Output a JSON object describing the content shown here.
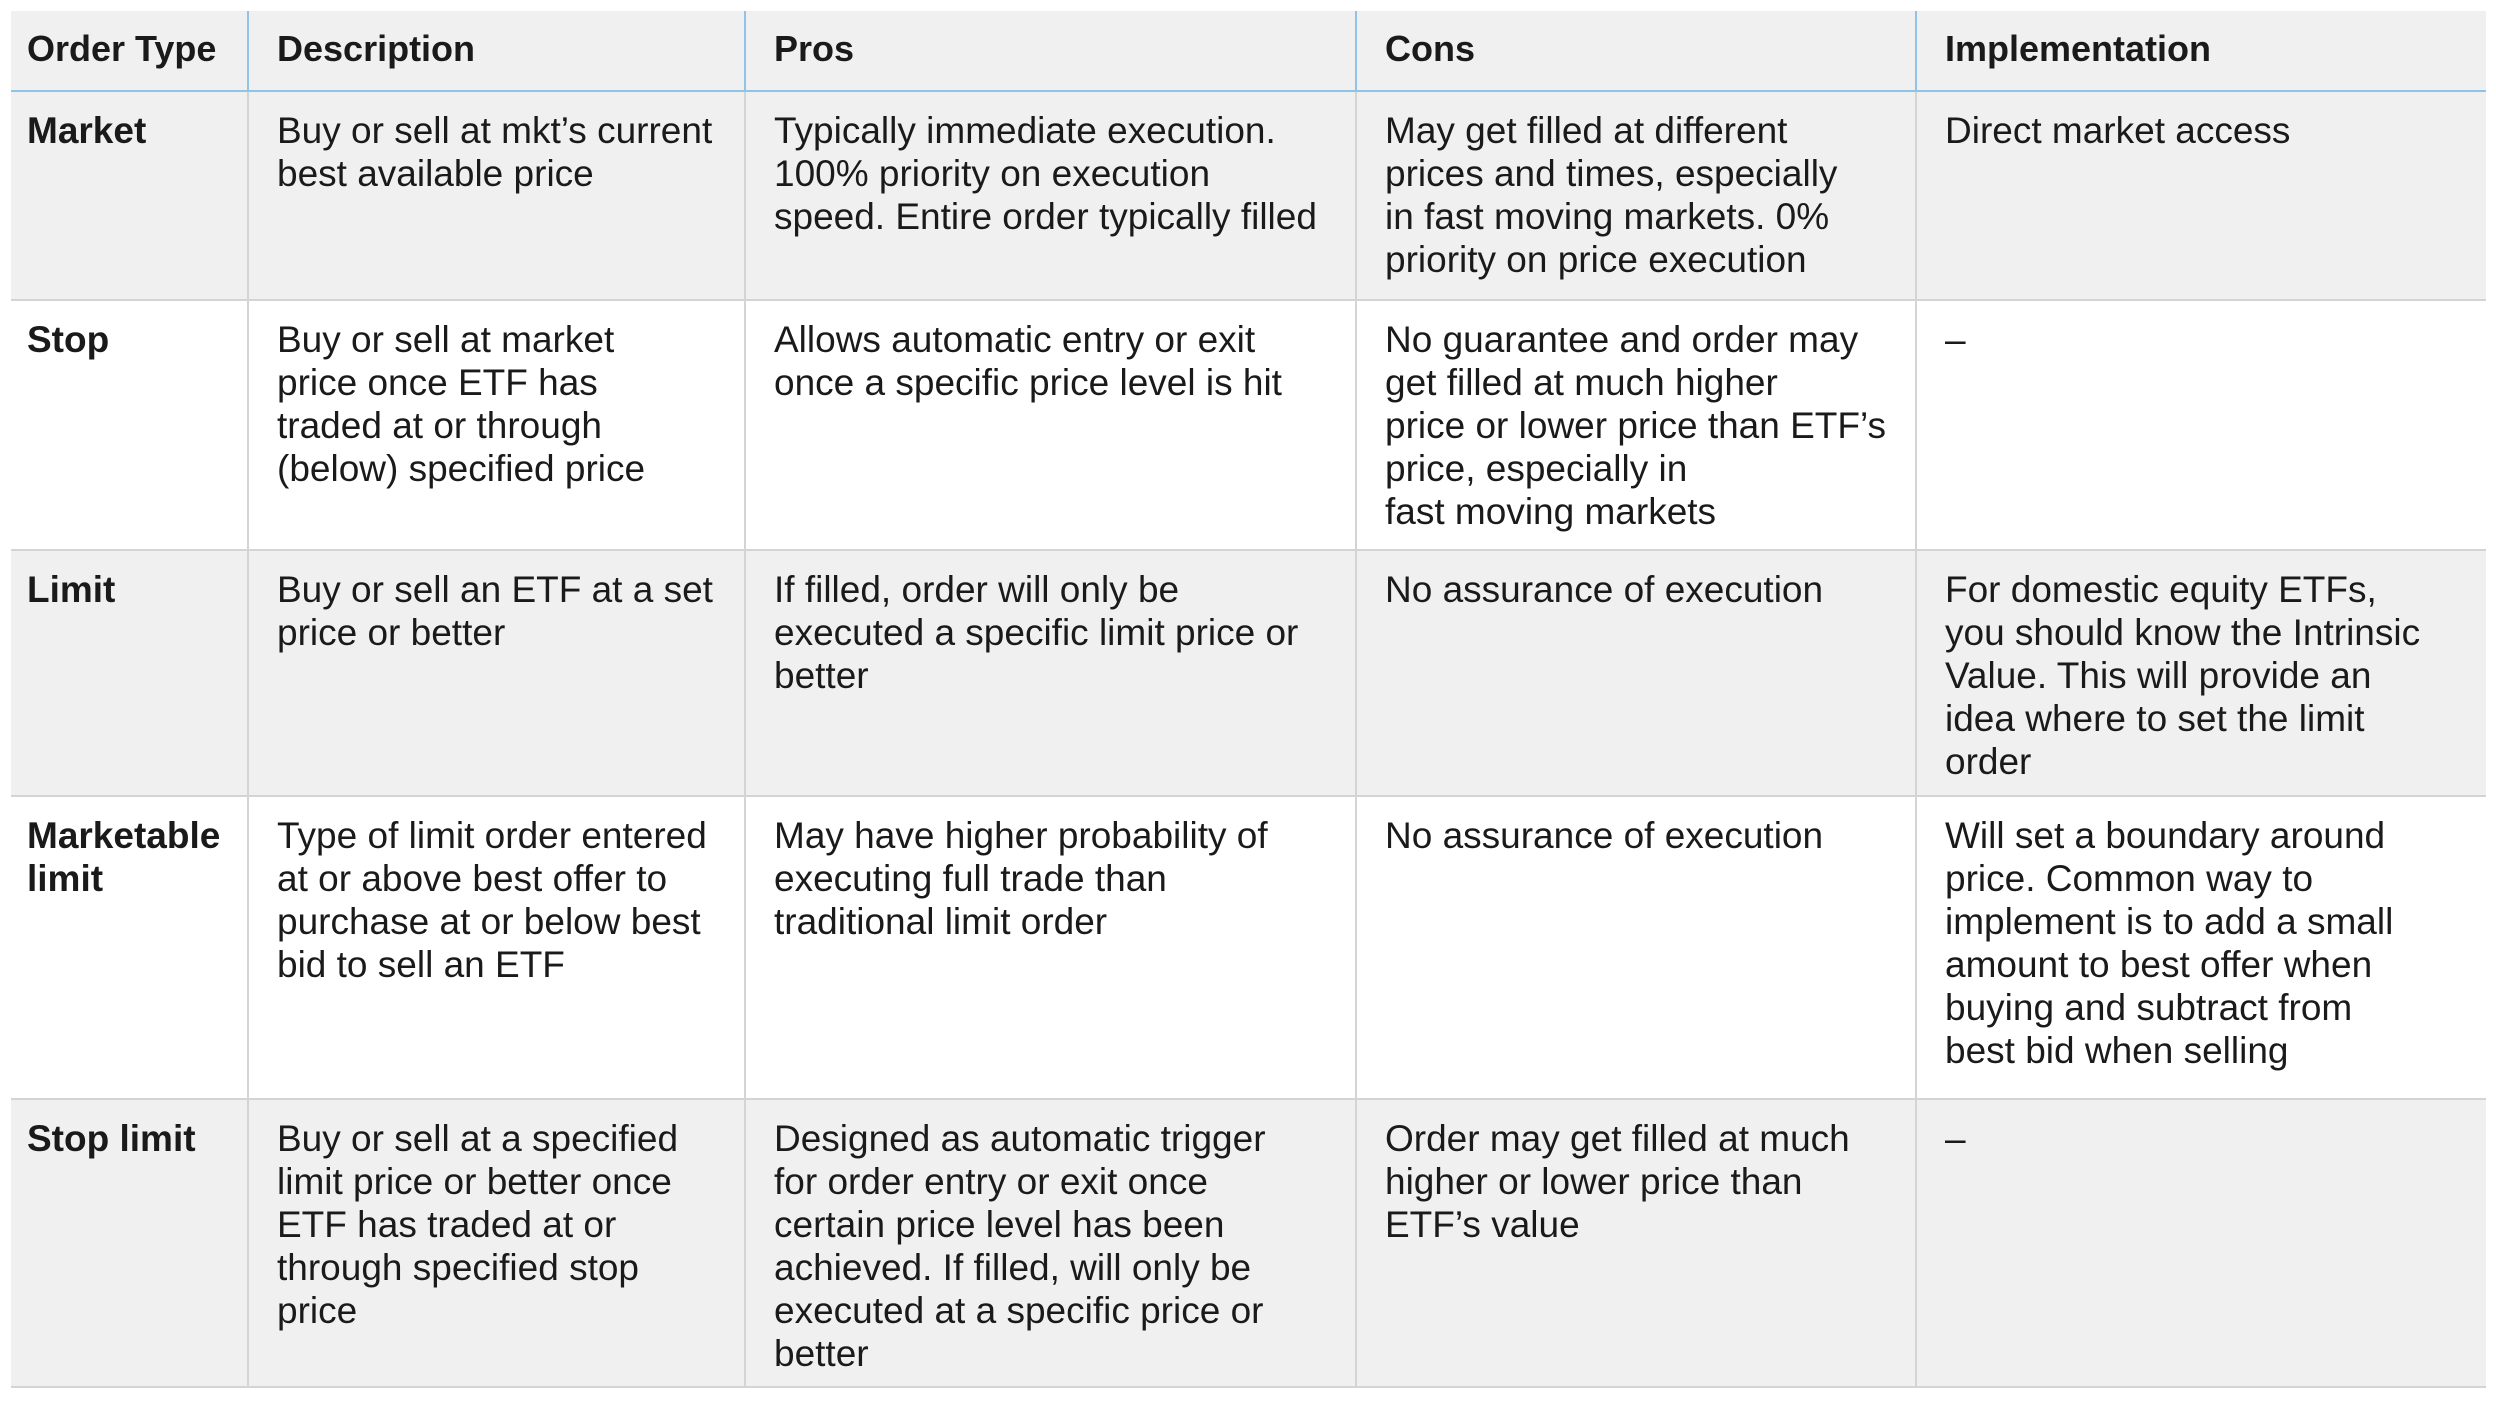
{
  "headers": [
    "Order Type",
    "Description",
    "Pros",
    "Cons",
    "Implementation"
  ],
  "rows": [
    {
      "type": "Market",
      "description": "Buy or sell at mkt’s current\nbest available price",
      "pros": "Typically immediate execution.\n100% priority on execution\nspeed. Entire order typically filled",
      "cons": "May get filled at different\nprices and times, especially\nin fast moving markets. 0%\npriority on price execution",
      "implementation": "Direct market access"
    },
    {
      "type": "Stop",
      "description": "Buy or sell at market\nprice once ETF has\ntraded at or through\n(below) specified price",
      "pros": "Allows automatic entry or exit\nonce a specific price level is hit",
      "cons": "No guarantee and order may\nget filled at much higher\nprice or lower price than ETF’s\nprice, especially in\nfast moving markets",
      "implementation": " –"
    },
    {
      "type": "Limit",
      "description": "Buy or sell an ETF at a set\nprice or better",
      "pros": "If filled, order will only be\nexecuted a specific limit price or\nbetter",
      "cons": "No assurance of execution",
      "implementation": "For domestic equity ETFs,\nyou should know the Intrinsic\nValue. This will provide an\nidea where to set the limit\norder"
    },
    {
      "type": "Marketable\nlimit",
      "description": "Type of limit order entered\nat or above best offer to\npurchase at or below best\nbid to sell an ETF",
      "pros": "May have higher probability of\nexecuting full trade than\ntraditional limit order",
      "cons": "No assurance of execution",
      "implementation": "Will set a boundary around\nprice. Common way to\nimplement is to add a small\namount to best offer when\nbuying and subtract from\nbest bid when selling"
    },
    {
      "type": "Stop limit",
      "description": "Buy or sell at a specified\nlimit price or better once\nETF has traded at or\nthrough specified stop\nprice",
      "pros": "Designed as automatic trigger\nfor order entry or exit once\ncertain price level has been\nachieved. If filled, will only be\nexecuted at a specific price or\nbetter",
      "cons": "Order may get filled at much\nhigher or lower price than\nETF’s value",
      "implementation": "–"
    }
  ]
}
